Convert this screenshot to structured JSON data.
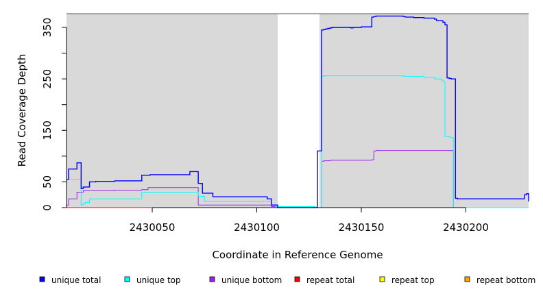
{
  "chart_data": {
    "type": "line",
    "xlabel": "Coordinate in Reference Genome",
    "ylabel": "Read Coverage Depth",
    "xlim": [
      2430009,
      2430230
    ],
    "ylim": [
      0,
      375
    ],
    "x_ticks": [
      2430050,
      2430100,
      2430150,
      2430200
    ],
    "x_tick_labels": [
      "2430050",
      "2430100",
      "2430150",
      "2430200"
    ],
    "y_ticks": [
      0,
      50,
      100,
      150,
      200,
      250,
      300,
      350
    ],
    "y_tick_labels": [
      "0",
      "50",
      "",
      "150",
      "",
      "250",
      "",
      "350"
    ],
    "uncovered_region": [
      2430110,
      2430130
    ],
    "grid": false,
    "legend_position": "bottom",
    "background_color": "#d9d9d9",
    "series": [
      {
        "name": "unique total",
        "color": "#0000ff",
        "x": [
          2430009,
          2430010,
          2430011,
          2430013,
          2430014,
          2430015,
          2430016,
          2430017,
          2430020,
          2430023,
          2430032,
          2430045,
          2430049,
          2430068,
          2430069,
          2430072,
          2430074,
          2430079,
          2430105,
          2430107,
          2430110,
          2430128,
          2430129,
          2430130,
          2430131,
          2430132,
          2430133,
          2430134,
          2430135,
          2430136,
          2430137,
          2430138,
          2430145,
          2430146,
          2430149,
          2430150,
          2430155,
          2430156,
          2430157,
          2430158,
          2430159,
          2430160,
          2430170,
          2430171,
          2430175,
          2430180,
          2430185,
          2430186,
          2430189,
          2430190,
          2430191,
          2430192,
          2430193,
          2430194,
          2430195,
          2430196,
          2430227,
          2430228,
          2430229,
          2430230
        ],
        "y": [
          55,
          75,
          75,
          75,
          87,
          87,
          37,
          40,
          50,
          51,
          52,
          63,
          64,
          70,
          70,
          47,
          28,
          21,
          17,
          5,
          0,
          0,
          110,
          110,
          345,
          346,
          347,
          348,
          349,
          350,
          350,
          350,
          349,
          350,
          350,
          351,
          370,
          371,
          372,
          372,
          372,
          372,
          371,
          370,
          369,
          368,
          366,
          363,
          360,
          355,
          252,
          251,
          250,
          250,
          18,
          17,
          17,
          25,
          27,
          12
        ]
      },
      {
        "name": "unique top",
        "color": "#00ffff",
        "x": [
          2430009,
          2430012,
          2430015,
          2430016,
          2430017,
          2430018,
          2430020,
          2430044,
          2430045,
          2430048,
          2430068,
          2430072,
          2430075,
          2430080,
          2430105,
          2430107,
          2430109,
          2430128,
          2430130,
          2430131,
          2430132,
          2430133,
          2430140,
          2430160,
          2430170,
          2430180,
          2430185,
          2430188,
          2430189,
          2430190,
          2430191,
          2430192,
          2430193,
          2430194,
          2430230
        ],
        "y": [
          55,
          55,
          55,
          5,
          8,
          10,
          17,
          17,
          30,
          30,
          30,
          22,
          12,
          12,
          12,
          5,
          2,
          0,
          0,
          255,
          256,
          256,
          256,
          256,
          255,
          253,
          250,
          248,
          245,
          138,
          138,
          137,
          136,
          0,
          0
        ]
      },
      {
        "name": "unique bottom",
        "color": "#a020f0",
        "x": [
          2430009,
          2430010,
          2430012,
          2430014,
          2430015,
          2430017,
          2430022,
          2430032,
          2430045,
          2430048,
          2430068,
          2430072,
          2430080,
          2430105,
          2430107,
          2430110,
          2430128,
          2430129,
          2430130,
          2430131,
          2430132,
          2430135,
          2430140,
          2430150,
          2430155,
          2430156,
          2430157,
          2430170,
          2430190,
          2430194,
          2430230
        ],
        "y": [
          5,
          17,
          17,
          30,
          30,
          33,
          33,
          34,
          35,
          39,
          39,
          5,
          5,
          5,
          2,
          0,
          0,
          0,
          0,
          90,
          91,
          92,
          92,
          92,
          93,
          110,
          111,
          111,
          111,
          0,
          0
        ]
      },
      {
        "name": "repeat total",
        "color": "#ff0000",
        "x": [
          2430009,
          2430230
        ],
        "y": [
          0,
          0
        ]
      },
      {
        "name": "repeat top",
        "color": "#ffff00",
        "x": [
          2430009,
          2430230
        ],
        "y": [
          0,
          0
        ]
      },
      {
        "name": "repeat bottom",
        "color": "#ffa500",
        "x": [
          2430009,
          2430230
        ],
        "y": [
          0,
          0
        ]
      }
    ]
  }
}
